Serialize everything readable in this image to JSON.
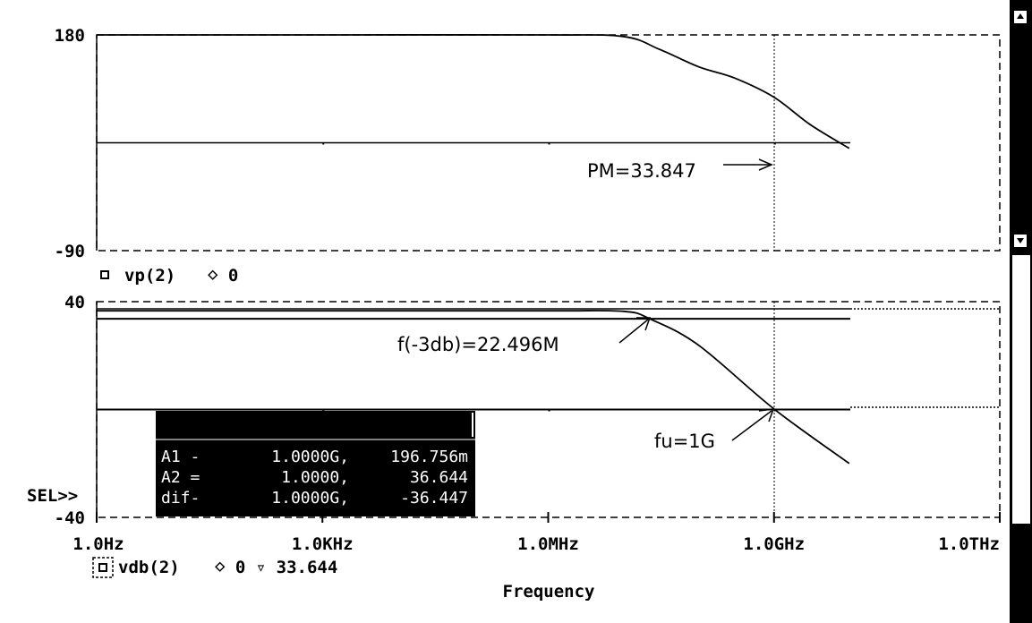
{
  "chart_data": [
    {
      "type": "line",
      "panel": "phase",
      "yticks": [
        "180",
        "-90"
      ],
      "ylim": [
        -90,
        180
      ],
      "xscale": "log",
      "xlim": [
        1,
        1000000000000.0
      ],
      "grid": "dotted",
      "legend": {
        "symbol": "□",
        "expr": "vp(2)",
        "extra": "⋄ 0"
      },
      "series": [
        {
          "name": "vp(2)",
          "x": [
            1,
            1000.0,
            1000000.0,
            10000000.0,
            10000000.0,
            30000000.0,
            100000000.0,
            300000000.0,
            1000000000.0,
            3000000000.0,
            10000000000.0
          ],
          "y": [
            180,
            180,
            180,
            178,
            178,
            162,
            140,
            126,
            102,
            68,
            38
          ]
        }
      ],
      "reference_line": 45,
      "annotation": "PM=33.847"
    },
    {
      "type": "line",
      "panel": "magnitude",
      "yticks": [
        "40",
        "-40"
      ],
      "ylim": [
        -40,
        40
      ],
      "xscale": "log",
      "xlim": [
        1,
        1000000000000.0
      ],
      "xticks": [
        "1.0Hz",
        "1.0KHz",
        "1.0MHz",
        "1.0GHz",
        "1.0THz"
      ],
      "xlabel": "Frequency",
      "grid": "dotted",
      "legend": {
        "symbol": "□",
        "expr": "vdb(2)",
        "extra": "⋄ 0 ▿ 33.644"
      },
      "series": [
        {
          "name": "vdb(2)",
          "x": [
            1,
            1000.0,
            1000000.0,
            10000000.0,
            22500000.0,
            100000000.0,
            1000000000.0,
            10000000000.0
          ],
          "y": [
            36.6,
            36.6,
            36.6,
            36.4,
            33.6,
            23.8,
            0.2,
            -20
          ]
        }
      ],
      "h_lines": [
        33.644,
        0
      ],
      "annotations": [
        "f(-3db)=22.496M",
        "fu=1G"
      ],
      "sel_label": "SEL>>"
    }
  ],
  "cursor": {
    "rows": [
      {
        "label": "A1 -",
        "x": "1.0000G,",
        "y": "196.756m"
      },
      {
        "label": "A2 =",
        "x": "1.0000,",
        "y": "36.644"
      },
      {
        "label": "dif-",
        "x": "1.0000G,",
        "y": "-36.447"
      }
    ]
  },
  "scrollbar": {}
}
